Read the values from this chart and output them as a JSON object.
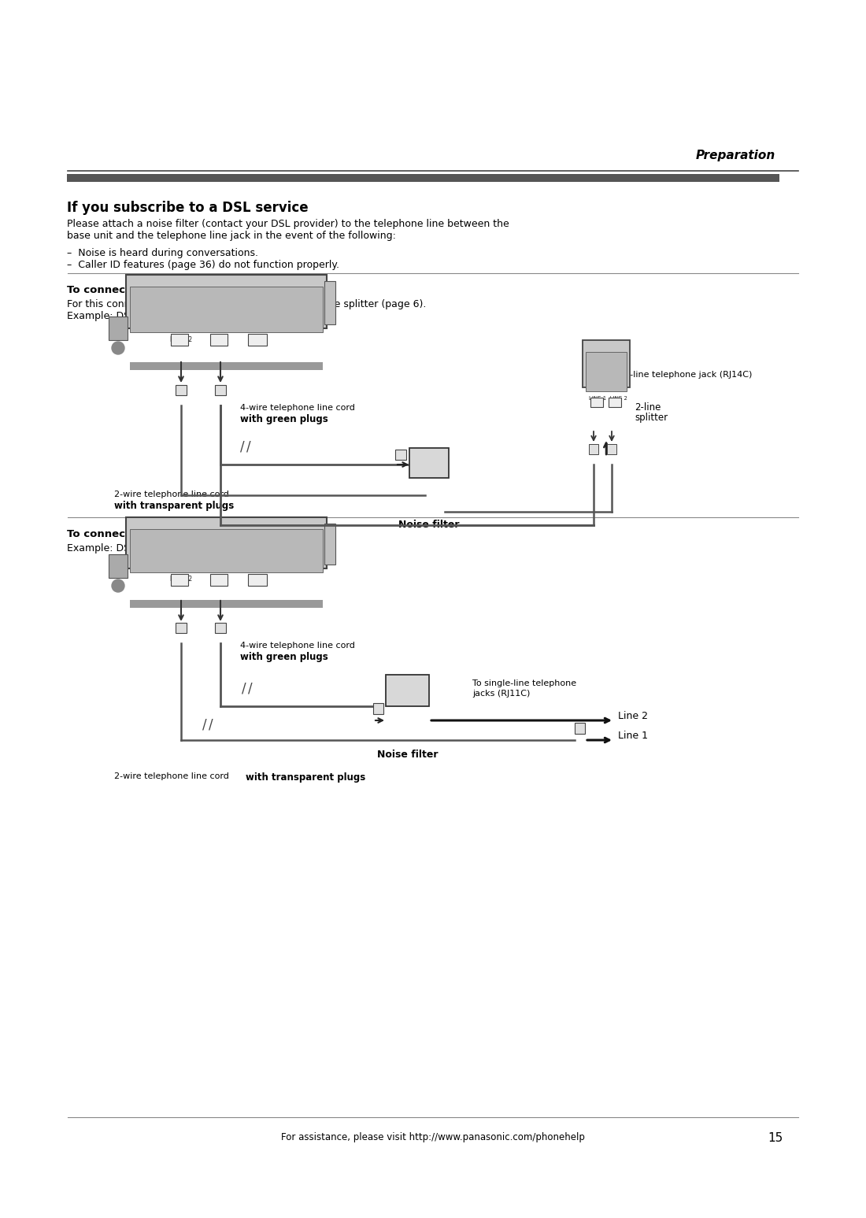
{
  "page_bg": "#ffffff",
  "header_text": "Preparation",
  "section_title": "If you subscribe to a DSL service",
  "body_text_1": "Please attach a noise filter (contact your DSL provider) to the telephone line between the\nbase unit and the telephone line jack in the event of the following:",
  "bullet_1": "–  Noise is heard during conversations.",
  "bullet_2": "–  Caller ID features (page 36) do not function properly.",
  "subsection1_title": "To connect to a 2-line telephone jack",
  "subsection1_body": "For this connection, please purchase a Panasonic 2-line splitter (page 6).\nExample: DSL line is line 2",
  "subsection2_title": "To connect to 2 single-line telephone jacks",
  "subsection2_body": "Example: DSL line is line 2",
  "footer_text": "For assistance, please visit http://www.panasonic.com/phonehelp",
  "footer_page": "15",
  "text_color": "#000000",
  "line_color": "#555555",
  "header_color": "#222222"
}
